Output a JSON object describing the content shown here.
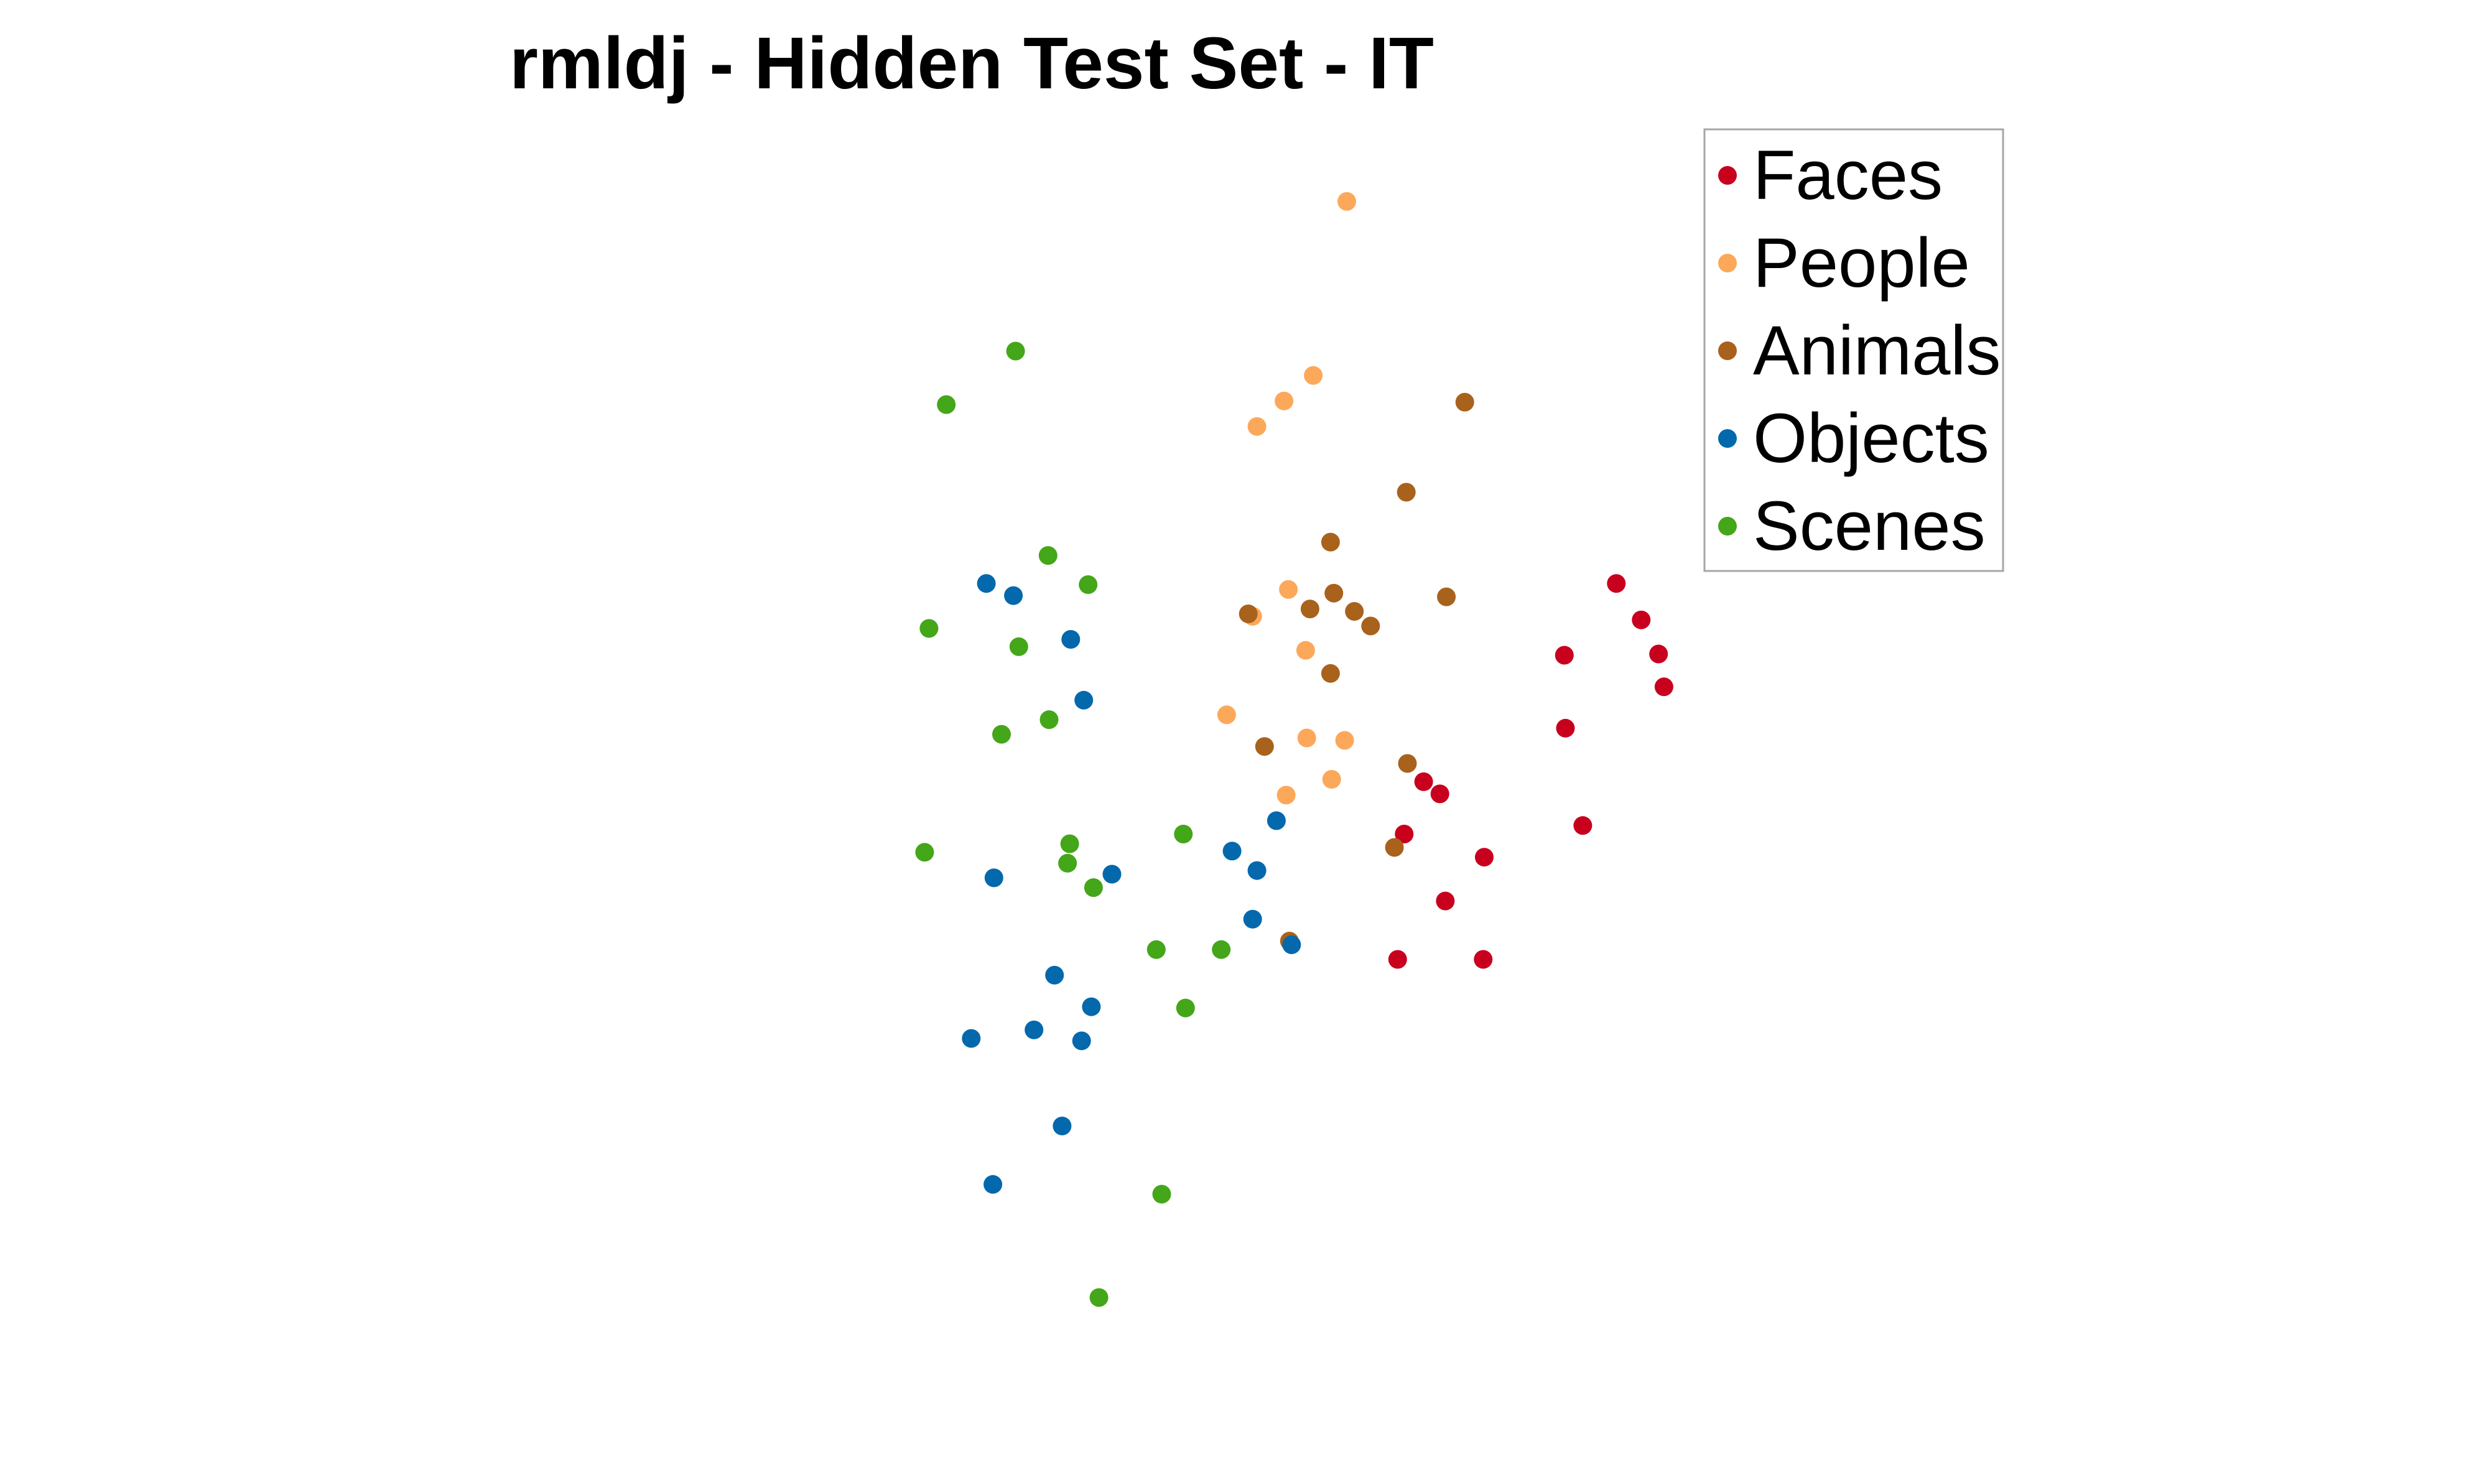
{
  "chart_data": {
    "type": "scatter",
    "title": "rmldj - Hidden Test Set - IT",
    "xlabel": "",
    "ylabel": "",
    "axes_visible": false,
    "xlim": [
      0,
      100
    ],
    "ylim": [
      0,
      100
    ],
    "legend": {
      "placement": "top-right",
      "boxed": true
    },
    "series": [
      {
        "name": "Faces",
        "color": "#c8001e",
        "x": [
          79.5,
          81.8,
          83.9,
          83.4,
          74.7,
          74.8,
          76.4,
          67.3,
          67.2,
          63.7,
          63.2,
          61.7,
          59.9,
          59.3
        ],
        "y": [
          61.5,
          58.5,
          53.0,
          55.7,
          55.6,
          49.6,
          41.6,
          39.0,
          30.6,
          35.4,
          44.2,
          45.2,
          40.9,
          30.6
        ]
      },
      {
        "name": "People",
        "color": "#fca85b",
        "x": [
          54.6,
          51.5,
          48.8,
          46.3,
          49.2,
          45.9,
          50.8,
          43.5,
          54.4,
          53.2,
          50.9,
          49.0
        ],
        "y": [
          92.9,
          78.6,
          76.5,
          74.4,
          61.0,
          58.8,
          56.0,
          50.7,
          48.6,
          45.4,
          48.8,
          44.1
        ]
      },
      {
        "name": "Animals",
        "color": "#a8621c",
        "x": [
          65.5,
          60.1,
          53.1,
          53.4,
          63.8,
          51.2,
          55.3,
          56.8,
          45.5,
          53.1,
          47.0,
          60.2,
          59.0,
          49.3
        ],
        "y": [
          76.4,
          69.0,
          64.9,
          60.7,
          60.4,
          59.4,
          59.2,
          58.0,
          59.0,
          54.1,
          48.1,
          46.7,
          39.8,
          32.1
        ]
      },
      {
        "name": "Objects",
        "color": "#0468ac",
        "x": [
          21.3,
          23.8,
          29.1,
          30.3,
          48.1,
          32.9,
          22.0,
          44.0,
          46.3,
          45.9,
          49.5,
          27.6,
          31.0,
          19.9,
          25.7,
          30.1,
          28.3,
          21.9
        ],
        "y": [
          61.5,
          60.5,
          56.9,
          51.9,
          42.0,
          37.6,
          37.3,
          39.5,
          37.9,
          33.9,
          31.8,
          29.3,
          26.7,
          24.1,
          24.8,
          23.9,
          16.9,
          12.1
        ]
      },
      {
        "name": "Scenes",
        "color": "#44a619",
        "x": [
          24.0,
          17.6,
          27.0,
          30.7,
          16.0,
          24.3,
          27.1,
          22.7,
          39.5,
          29.0,
          15.6,
          28.8,
          31.2,
          37.0,
          43.0,
          39.7,
          37.5,
          31.7
        ],
        "y": [
          80.6,
          76.2,
          63.8,
          61.4,
          57.8,
          56.3,
          50.3,
          49.1,
          40.9,
          40.1,
          39.4,
          38.5,
          36.5,
          31.4,
          31.4,
          26.6,
          11.3,
          2.8
        ]
      }
    ]
  }
}
